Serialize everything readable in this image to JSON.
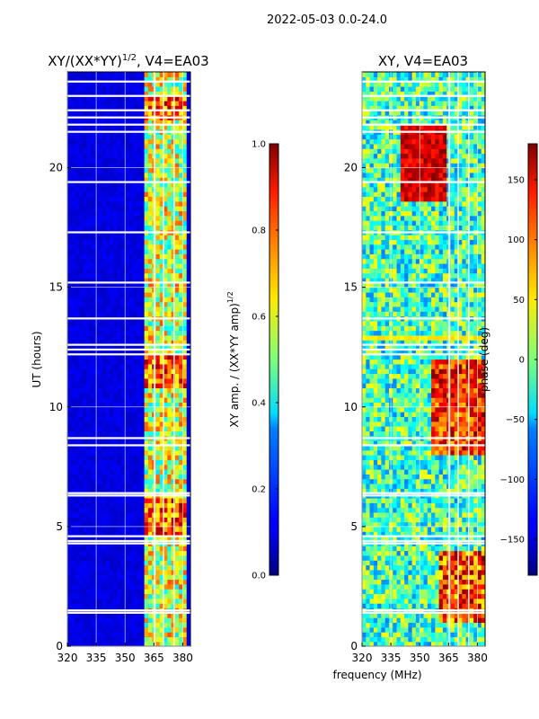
{
  "figure": {
    "suptitle": "2022-05-03 0.0-24.0",
    "shared_xlabel": "frequency (MHz)"
  },
  "chart_data": [
    {
      "type": "heatmap",
      "title_main": "XY/(XX*YY)",
      "title_sup": "1/2",
      "title_tail": ", V4=EA03",
      "xlabel": "",
      "ylabel": "UT (hours)",
      "xlim": [
        320,
        384
      ],
      "ylim": [
        0,
        24
      ],
      "xticks": [
        320,
        335,
        350,
        365,
        380
      ],
      "yticks": [
        0,
        5,
        10,
        15,
        20
      ],
      "colorbar": {
        "label_main": "XY amp. / (XX*YY amp)",
        "label_sup": "1/2",
        "range": [
          0.0,
          1.0
        ],
        "ticks": [
          "0.0",
          "0.2",
          "0.4",
          "0.6",
          "0.8",
          "1.0"
        ],
        "colormap": "jet"
      },
      "grid": true
    },
    {
      "type": "heatmap",
      "title": "XY, V4=EA03",
      "xlabel": "frequency (MHz)",
      "ylabel": "",
      "xlim": [
        320,
        384
      ],
      "ylim": [
        0,
        24
      ],
      "xticks": [
        320,
        335,
        350,
        365,
        380
      ],
      "yticks": [
        0,
        5,
        10,
        15,
        20
      ],
      "colorbar": {
        "label": "phase (deg)",
        "range": [
          -180,
          180
        ],
        "ticks": [
          "−150",
          "−100",
          "−50",
          "0",
          "50",
          "100",
          "150"
        ],
        "colormap": "jet"
      },
      "grid": true
    }
  ]
}
